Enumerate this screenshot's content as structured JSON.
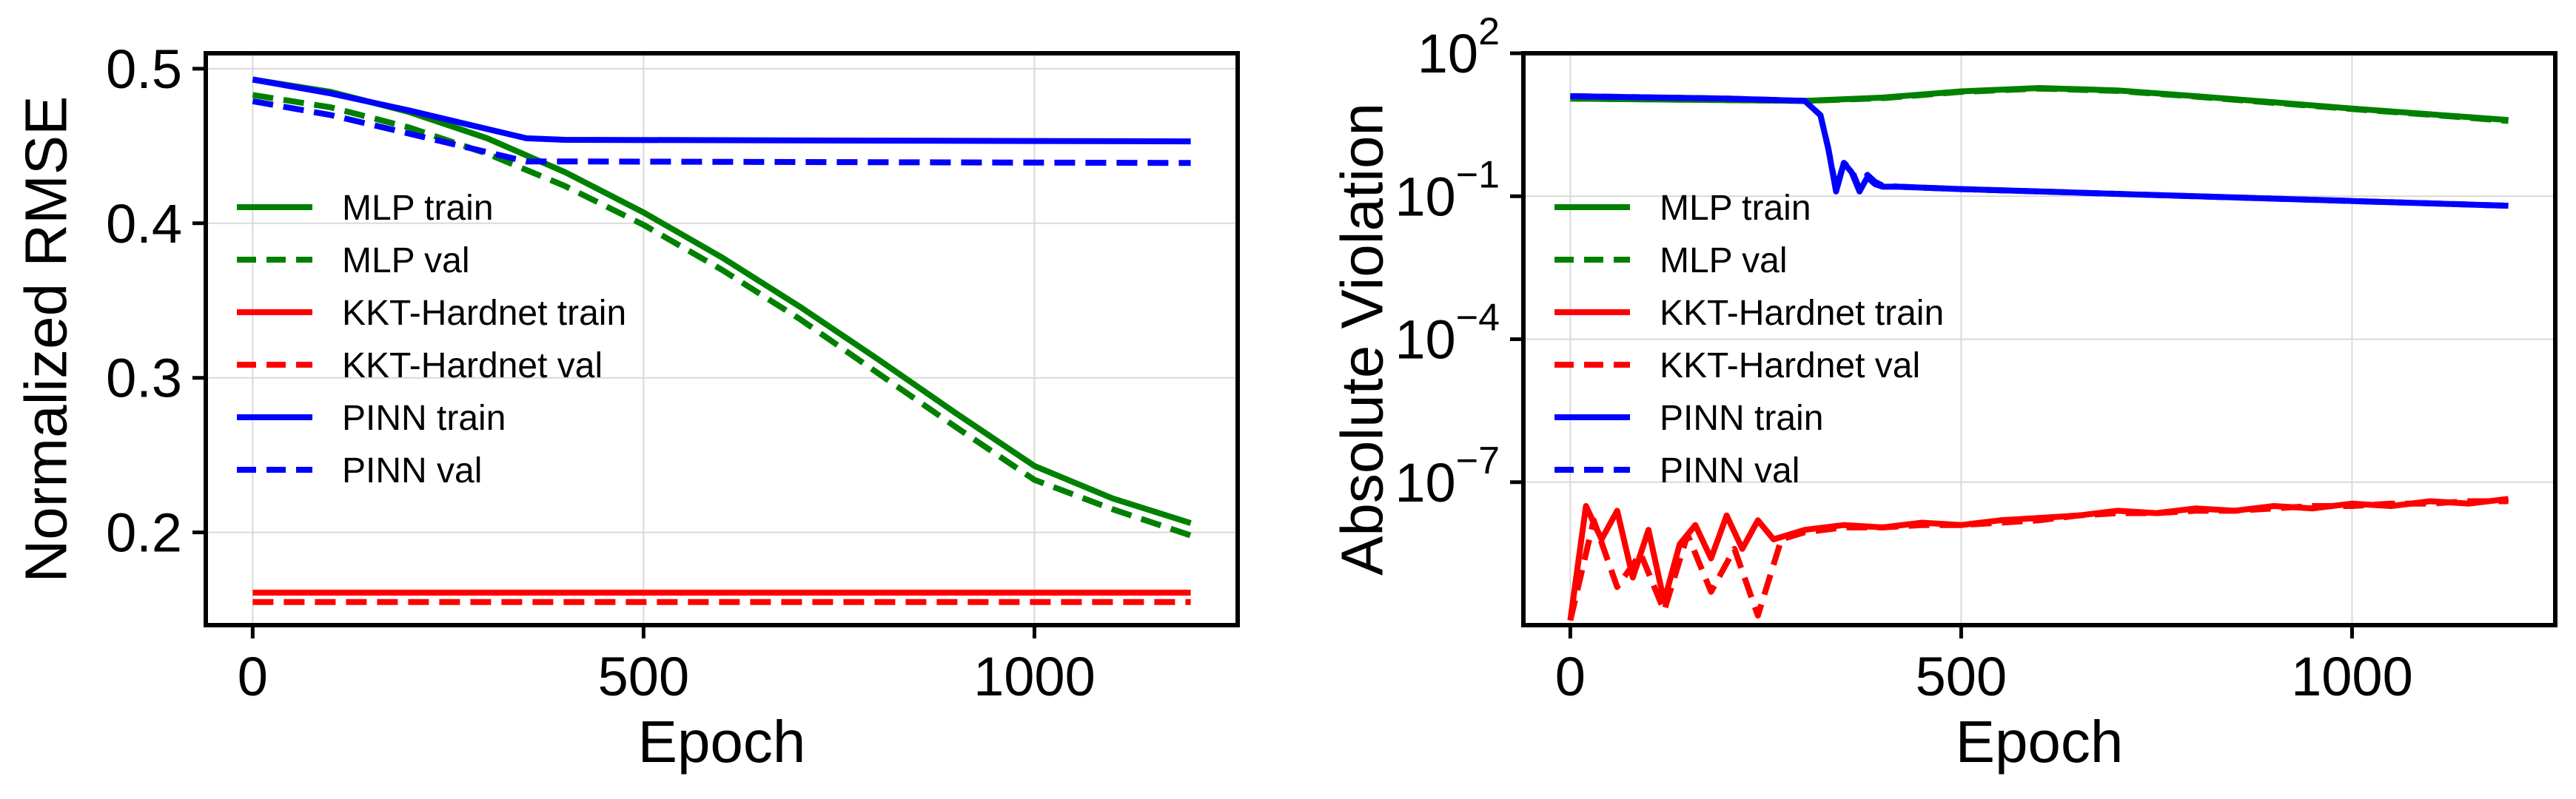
{
  "chart_data": [
    {
      "type": "line",
      "xlabel": "Epoch",
      "ylabel": "Normalized RMSE",
      "xlim": [
        -60,
        1260
      ],
      "ylim": [
        0.14,
        0.51
      ],
      "xticks": [
        0,
        500,
        1000
      ],
      "yticks": [
        0.2,
        0.3,
        0.4,
        0.5
      ],
      "ytick_labels": [
        "0.2",
        "0.3",
        "0.4",
        "0.5"
      ],
      "yscale": "linear",
      "grid": true,
      "legend_position": "center-left",
      "series": [
        {
          "name": "MLP train",
          "color": "#008000",
          "dash": "solid",
          "x": [
            0,
            100,
            200,
            300,
            400,
            500,
            600,
            700,
            800,
            900,
            1000,
            1100,
            1200
          ],
          "y": [
            0.493,
            0.485,
            0.472,
            0.455,
            0.433,
            0.407,
            0.378,
            0.346,
            0.312,
            0.277,
            0.243,
            0.222,
            0.206
          ]
        },
        {
          "name": "MLP val",
          "color": "#008000",
          "dash": "dashed",
          "x": [
            0,
            100,
            200,
            300,
            400,
            500,
            600,
            700,
            800,
            900,
            1000,
            1100,
            1200
          ],
          "y": [
            0.483,
            0.475,
            0.462,
            0.445,
            0.424,
            0.399,
            0.37,
            0.338,
            0.303,
            0.268,
            0.234,
            0.215,
            0.198
          ]
        },
        {
          "name": "KKT-Hardnet train",
          "color": "#ff0000",
          "dash": "solid",
          "x": [
            0,
            1200
          ],
          "y": [
            0.161,
            0.161
          ]
        },
        {
          "name": "KKT-Hardnet val",
          "color": "#ff0000",
          "dash": "dashed",
          "x": [
            0,
            1200
          ],
          "y": [
            0.155,
            0.155
          ]
        },
        {
          "name": "PINN train",
          "color": "#0000ff",
          "dash": "solid",
          "x": [
            0,
            100,
            200,
            300,
            350,
            400,
            1200
          ],
          "y": [
            0.493,
            0.484,
            0.473,
            0.461,
            0.455,
            0.454,
            0.453
          ]
        },
        {
          "name": "PINN val",
          "color": "#0000ff",
          "dash": "dashed",
          "x": [
            0,
            100,
            200,
            300,
            350,
            400,
            1200
          ],
          "y": [
            0.479,
            0.47,
            0.458,
            0.446,
            0.44,
            0.44,
            0.439
          ]
        }
      ]
    },
    {
      "type": "line",
      "xlabel": "Epoch",
      "ylabel": "Absolute Violation",
      "xlim": [
        -60,
        1260
      ],
      "ylim": [
        -10,
        2
      ],
      "ylim_note_units": "log10",
      "xticks": [
        0,
        500,
        1000
      ],
      "yticks": [
        2,
        -1,
        -4,
        -7
      ],
      "ytick_labels": [
        {
          "base": "10",
          "exp": "2"
        },
        {
          "base": "10",
          "exp": "−1"
        },
        {
          "base": "10",
          "exp": "−4"
        },
        {
          "base": "10",
          "exp": "−7"
        }
      ],
      "yscale": "log",
      "grid": true,
      "legend_position": "center-left",
      "series": [
        {
          "name": "MLP train",
          "color": "#008000",
          "dash": "solid",
          "x": [
            0,
            300,
            400,
            500,
            600,
            700,
            800,
            900,
            1000,
            1100,
            1200
          ],
          "y_log10": [
            1.05,
            1.0,
            1.07,
            1.2,
            1.27,
            1.22,
            1.1,
            0.97,
            0.84,
            0.72,
            0.6
          ]
        },
        {
          "name": "MLP val",
          "color": "#008000",
          "dash": "dashed",
          "x": [
            0,
            300,
            400,
            500,
            600,
            700,
            800,
            900,
            1000,
            1100,
            1200
          ],
          "y_log10": [
            1.05,
            1.0,
            1.06,
            1.19,
            1.26,
            1.21,
            1.09,
            0.96,
            0.83,
            0.71,
            0.58
          ]
        },
        {
          "name": "KKT-Hardnet train",
          "color": "#ff0000",
          "dash": "solid",
          "x": [
            0,
            20,
            40,
            60,
            80,
            100,
            120,
            140,
            160,
            180,
            200,
            220,
            240,
            260,
            300,
            350,
            400,
            450,
            500,
            550,
            600,
            650,
            700,
            750,
            800,
            850,
            900,
            950,
            1000,
            1050,
            1100,
            1150,
            1200
          ],
          "y_log10": [
            -9.9,
            -7.5,
            -8.2,
            -7.6,
            -9.0,
            -8.0,
            -9.5,
            -8.3,
            -7.9,
            -8.6,
            -7.7,
            -8.4,
            -7.8,
            -8.2,
            -8.0,
            -7.9,
            -7.95,
            -7.85,
            -7.9,
            -7.8,
            -7.75,
            -7.7,
            -7.6,
            -7.65,
            -7.55,
            -7.6,
            -7.5,
            -7.55,
            -7.45,
            -7.5,
            -7.4,
            -7.45,
            -7.35
          ]
        },
        {
          "name": "KKT-Hardnet val",
          "color": "#ff0000",
          "dash": "dashed",
          "x": [
            0,
            30,
            60,
            90,
            120,
            150,
            180,
            210,
            240,
            270,
            300,
            350,
            400,
            450,
            500,
            550,
            600,
            650,
            700,
            750,
            800,
            850,
            900,
            950,
            1000,
            1050,
            1100,
            1150,
            1200
          ],
          "y_log10": [
            -9.9,
            -7.8,
            -9.2,
            -8.5,
            -9.7,
            -8.1,
            -9.3,
            -8.4,
            -9.8,
            -8.2,
            -8.05,
            -7.95,
            -7.95,
            -7.9,
            -7.9,
            -7.85,
            -7.8,
            -7.7,
            -7.65,
            -7.65,
            -7.6,
            -7.6,
            -7.55,
            -7.5,
            -7.5,
            -7.45,
            -7.45,
            -7.4,
            -7.4
          ]
        },
        {
          "name": "PINN train",
          "color": "#0000ff",
          "dash": "solid",
          "x": [
            0,
            200,
            300,
            320,
            330,
            340,
            350,
            360,
            370,
            380,
            390,
            400,
            420,
            500,
            600,
            800,
            1000,
            1200
          ],
          "y_log10": [
            1.1,
            1.05,
            1.0,
            0.7,
            0.0,
            -0.9,
            -0.3,
            -0.5,
            -0.9,
            -0.6,
            -0.75,
            -0.8,
            -0.8,
            -0.85,
            -0.9,
            -1.0,
            -1.1,
            -1.2
          ]
        },
        {
          "name": "PINN val",
          "color": "#0000ff",
          "dash": "dashed",
          "x": [
            0,
            200,
            300,
            320,
            330,
            340,
            350,
            360,
            370,
            380,
            390,
            400,
            420,
            500,
            600,
            800,
            1000,
            1200
          ],
          "y_log10": [
            1.1,
            1.05,
            1.0,
            0.7,
            0.0,
            -0.85,
            -0.3,
            -0.45,
            -0.85,
            -0.55,
            -0.7,
            -0.78,
            -0.8,
            -0.85,
            -0.9,
            -1.0,
            -1.1,
            -1.2
          ]
        }
      ]
    }
  ]
}
